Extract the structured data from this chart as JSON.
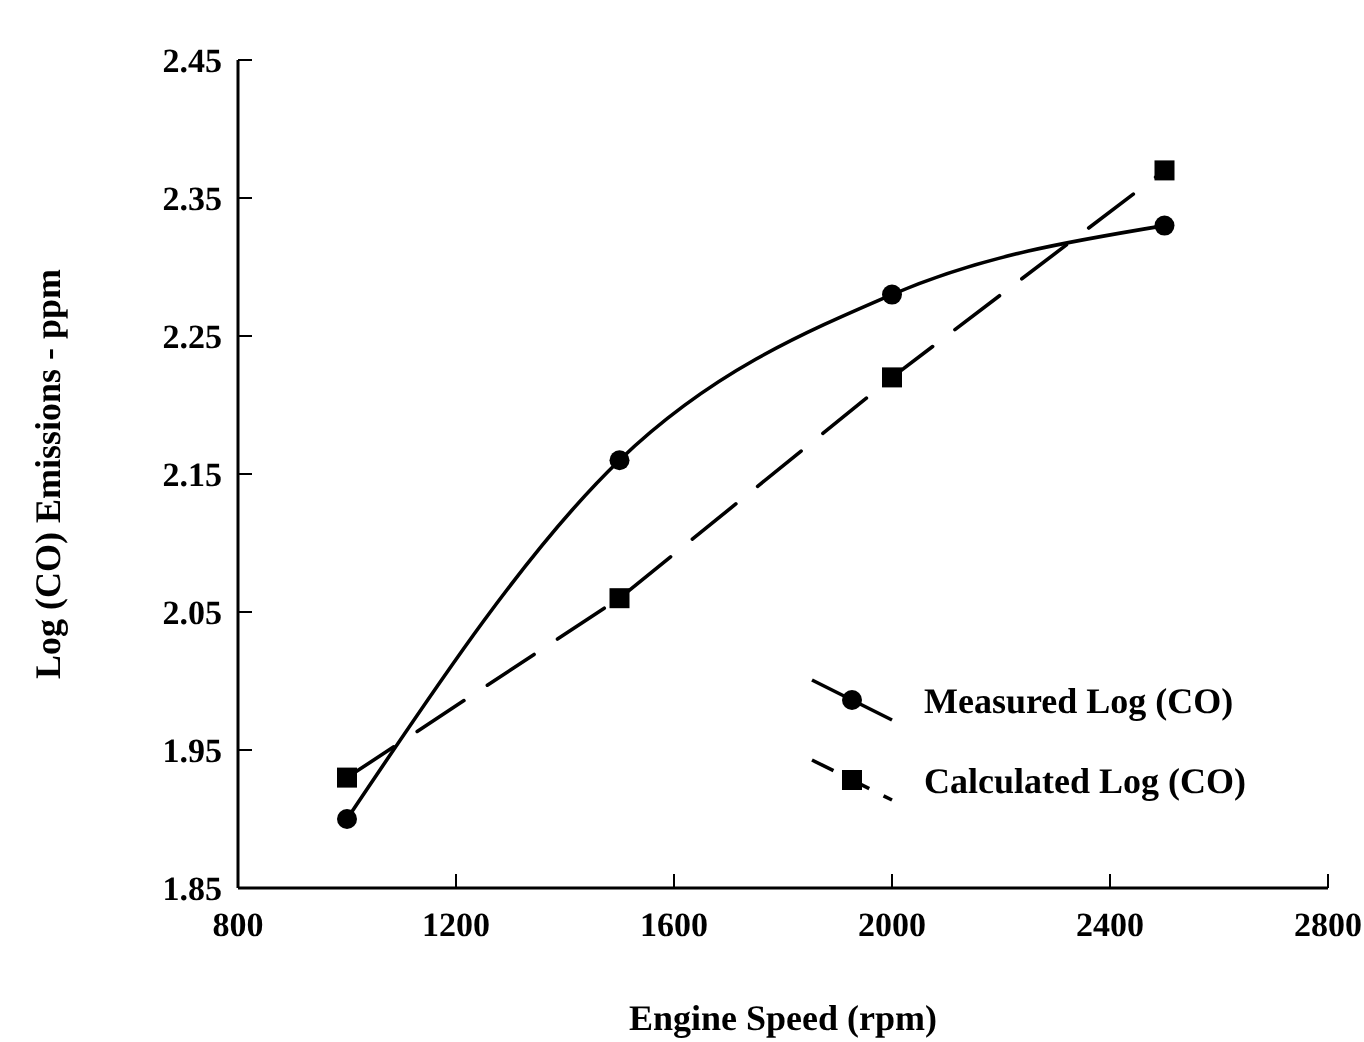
{
  "chart_data": {
    "type": "line",
    "xlabel": "Engine Speed (rpm)",
    "ylabel": "Log (CO) Emissions - ppm",
    "x": [
      1000,
      1500,
      2000,
      2500
    ],
    "series": [
      {
        "name": "Measured Log (CO)",
        "color": "#000000",
        "values": [
          1.9,
          2.16,
          2.28,
          2.33
        ],
        "marker": "circle",
        "line_style": "solid"
      },
      {
        "name": "Calculated Log (CO)",
        "color": "#000000",
        "values": [
          1.93,
          2.06,
          2.22,
          2.37
        ],
        "marker": "square",
        "line_style": "dashed"
      }
    ],
    "xlim": [
      800,
      2800
    ],
    "xticks": [
      800,
      1200,
      1600,
      2000,
      2400,
      2800
    ],
    "ylim": [
      1.85,
      2.45
    ],
    "yticks": [
      1.85,
      1.95,
      2.05,
      2.15,
      2.25,
      2.35,
      2.45
    ],
    "grid": false,
    "legend": "bottom right"
  }
}
